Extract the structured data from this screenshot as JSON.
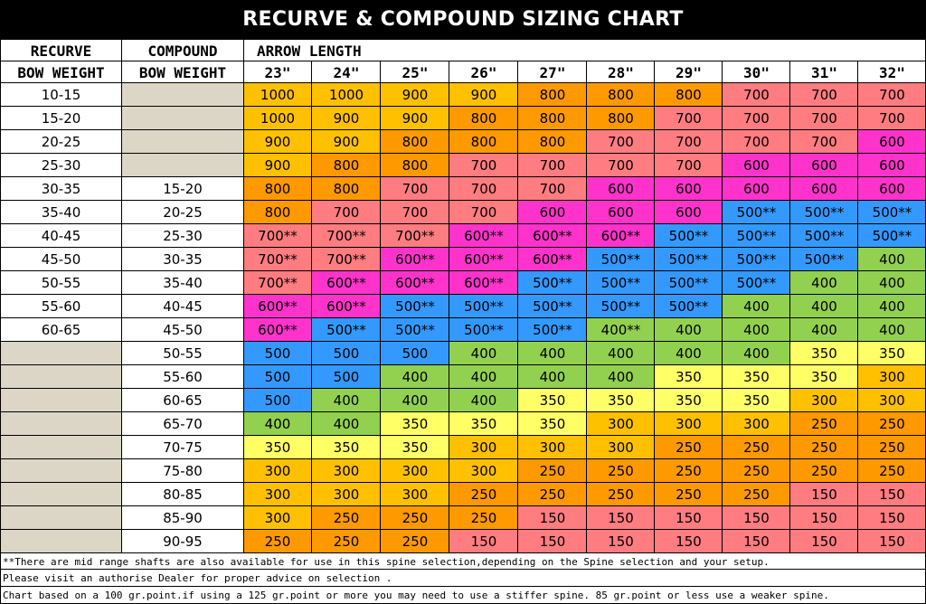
{
  "title": "RECURVE & COMPOUND SIZING CHART",
  "headers": {
    "recurve_top": "RECURVE",
    "recurve_bottom": "BOW WEIGHT",
    "compound_top": "COMPOUND",
    "compound_bottom": "BOW WEIGHT",
    "arrow_length": "ARROW LENGTH"
  },
  "colors": {
    "title_bg": "#000000",
    "blank_cell": "#dbd6c6",
    "1000": "#ffc000",
    "900": "#ffc000",
    "800": "#ff9900",
    "700": "#ff7c80",
    "600": "#ff33cc",
    "500": "#3399ff",
    "400": "#92d050",
    "350": "#ffff66",
    "300": "#ffc000",
    "250": "#ff9900",
    "150": "#ff7c80"
  },
  "chart_data": {
    "type": "table",
    "lengths": [
      "23\"",
      "24\"",
      "25\"",
      "26\"",
      "27\"",
      "28\"",
      "29\"",
      "30\"",
      "31\"",
      "32\""
    ],
    "rows": [
      {
        "recurve": "10-15",
        "compound": "",
        "spines": [
          "1000",
          "1000",
          "900",
          "900",
          "800",
          "800",
          "800",
          "700",
          "700",
          "700"
        ]
      },
      {
        "recurve": "15-20",
        "compound": "",
        "spines": [
          "1000",
          "900",
          "900",
          "800",
          "800",
          "800",
          "700",
          "700",
          "700",
          "700"
        ]
      },
      {
        "recurve": "20-25",
        "compound": "",
        "spines": [
          "900",
          "900",
          "800",
          "800",
          "800",
          "700",
          "700",
          "700",
          "700",
          "600"
        ]
      },
      {
        "recurve": "25-30",
        "compound": "",
        "spines": [
          "900",
          "800",
          "800",
          "700",
          "700",
          "700",
          "700",
          "600",
          "600",
          "600"
        ]
      },
      {
        "recurve": "30-35",
        "compound": "15-20",
        "spines": [
          "800",
          "800",
          "700",
          "700",
          "700",
          "600",
          "600",
          "600",
          "600",
          "600"
        ]
      },
      {
        "recurve": "35-40",
        "compound": "20-25",
        "spines": [
          "800",
          "700",
          "700",
          "700",
          "600",
          "600",
          "600",
          "500**",
          "500**",
          "500**"
        ]
      },
      {
        "recurve": "40-45",
        "compound": "25-30",
        "spines": [
          "700**",
          "700**",
          "700**",
          "600**",
          "600**",
          "600**",
          "500**",
          "500**",
          "500**",
          "500**"
        ]
      },
      {
        "recurve": "45-50",
        "compound": "30-35",
        "spines": [
          "700**",
          "700**",
          "600**",
          "600**",
          "600**",
          "500**",
          "500**",
          "500**",
          "500**",
          "400"
        ]
      },
      {
        "recurve": "50-55",
        "compound": "35-40",
        "spines": [
          "700**",
          "600**",
          "600**",
          "600**",
          "500**",
          "500**",
          "500**",
          "500**",
          "400",
          "400"
        ]
      },
      {
        "recurve": "55-60",
        "compound": "40-45",
        "spines": [
          "600**",
          "600**",
          "500**",
          "500**",
          "500**",
          "500**",
          "500**",
          "400",
          "400",
          "400"
        ]
      },
      {
        "recurve": "60-65",
        "compound": "45-50",
        "spines": [
          "600**",
          "500**",
          "500**",
          "500**",
          "500**",
          "400**",
          "400",
          "400",
          "400",
          "400"
        ]
      },
      {
        "recurve": "",
        "compound": "50-55",
        "spines": [
          "500",
          "500",
          "500",
          "400",
          "400",
          "400",
          "400",
          "400",
          "350",
          "350"
        ]
      },
      {
        "recurve": "",
        "compound": "55-60",
        "spines": [
          "500",
          "500",
          "400",
          "400",
          "400",
          "400",
          "350",
          "350",
          "350",
          "300"
        ]
      },
      {
        "recurve": "",
        "compound": "60-65",
        "spines": [
          "500",
          "400",
          "400",
          "400",
          "350",
          "350",
          "350",
          "350",
          "300",
          "300"
        ]
      },
      {
        "recurve": "",
        "compound": "65-70",
        "spines": [
          "400",
          "400",
          "350",
          "350",
          "350",
          "300",
          "300",
          "300",
          "250",
          "250"
        ]
      },
      {
        "recurve": "",
        "compound": "70-75",
        "spines": [
          "350",
          "350",
          "350",
          "300",
          "300",
          "300",
          "250",
          "250",
          "250",
          "250"
        ]
      },
      {
        "recurve": "",
        "compound": "75-80",
        "spines": [
          "300",
          "300",
          "300",
          "300",
          "250",
          "250",
          "250",
          "250",
          "250",
          "250"
        ]
      },
      {
        "recurve": "",
        "compound": "80-85",
        "spines": [
          "300",
          "300",
          "300",
          "250",
          "250",
          "250",
          "250",
          "250",
          "150",
          "150"
        ]
      },
      {
        "recurve": "",
        "compound": "85-90",
        "spines": [
          "300",
          "250",
          "250",
          "250",
          "150",
          "150",
          "150",
          "150",
          "150",
          "150"
        ]
      },
      {
        "recurve": "",
        "compound": "90-95",
        "spines": [
          "250",
          "250",
          "250",
          "150",
          "150",
          "150",
          "150",
          "150",
          "150",
          "150"
        ]
      }
    ]
  },
  "notes": [
    "**There are mid range shafts are also available for use in this spine selection,depending on the Spine selection and your setup.",
    "Please visit an authorise Dealer for proper advice on selection .",
    "Chart based on a 100 gr.point.if using a 125 gr.point or more you may need to use a stiffer spine. 85 gr.point or less use a weaker spine."
  ]
}
